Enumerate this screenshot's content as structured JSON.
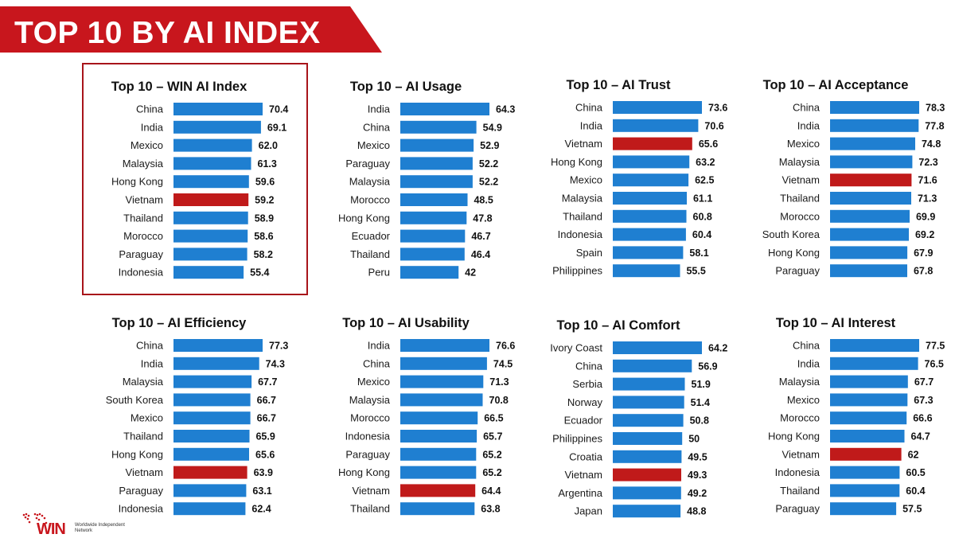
{
  "header": {
    "title": "TOP 10 BY AI INDEX"
  },
  "colors": {
    "bar": "#1f7fd1",
    "highlight": "#c01a1a",
    "banner": "#c8161d"
  },
  "logo": {
    "text": "WIN",
    "sub": "Worldwide Independent Network"
  },
  "chart_data": [
    {
      "type": "bar",
      "orientation": "horizontal",
      "title": "Top 10 – WIN AI Index",
      "categories": [
        "China",
        "India",
        "Mexico",
        "Malaysia",
        "Hong Kong",
        "Vietnam",
        "Thailand",
        "Morocco",
        "Paraguay",
        "Indonesia"
      ],
      "values": [
        70.4,
        69.1,
        62.0,
        61.3,
        59.6,
        59.2,
        58.9,
        58.6,
        58.2,
        55.4
      ],
      "value_labels": [
        "70.4",
        "69.1",
        "62.0",
        "61.3",
        "59.6",
        "59.2",
        "58.9",
        "58.6",
        "58.2",
        "55.4"
      ],
      "highlight": "Vietnam"
    },
    {
      "type": "bar",
      "orientation": "horizontal",
      "title": "Top 10 – AI Usage",
      "categories": [
        "India",
        "China",
        "Mexico",
        "Paraguay",
        "Malaysia",
        "Morocco",
        "Hong Kong",
        "Ecuador",
        "Thailand",
        "Peru"
      ],
      "values": [
        64.3,
        54.9,
        52.9,
        52.2,
        52.2,
        48.5,
        47.8,
        46.7,
        46.4,
        42
      ],
      "value_labels": [
        "64.3",
        "54.9",
        "52.9",
        "52.2",
        "52.2",
        "48.5",
        "47.8",
        "46.7",
        "46.4",
        "42"
      ],
      "highlight": null
    },
    {
      "type": "bar",
      "orientation": "horizontal",
      "title": "Top 10 – AI Trust",
      "categories": [
        "China",
        "India",
        "Vietnam",
        "Hong Kong",
        "Mexico",
        "Malaysia",
        "Thailand",
        "Indonesia",
        "Spain",
        "Philippines"
      ],
      "values": [
        73.6,
        70.6,
        65.6,
        63.2,
        62.5,
        61.1,
        60.8,
        60.4,
        58.1,
        55.5
      ],
      "value_labels": [
        "73.6",
        "70.6",
        "65.6",
        "63.2",
        "62.5",
        "61.1",
        "60.8",
        "60.4",
        "58.1",
        "55.5"
      ],
      "highlight": "Vietnam"
    },
    {
      "type": "bar",
      "orientation": "horizontal",
      "title": "Top 10 – AI Acceptance",
      "categories": [
        "China",
        "India",
        "Mexico",
        "Malaysia",
        "Vietnam",
        "Thailand",
        "Morocco",
        "South Korea",
        "Hong Kong",
        "Paraguay"
      ],
      "values": [
        78.3,
        77.8,
        74.8,
        72.3,
        71.6,
        71.3,
        69.9,
        69.2,
        67.9,
        67.8
      ],
      "value_labels": [
        "78.3",
        "77.8",
        "74.8",
        "72.3",
        "71.6",
        "71.3",
        "69.9",
        "69.2",
        "67.9",
        "67.8"
      ],
      "highlight": "Vietnam"
    },
    {
      "type": "bar",
      "orientation": "horizontal",
      "title": "Top 10 – AI Efficiency",
      "categories": [
        "China",
        "India",
        "Malaysia",
        "South Korea",
        "Mexico",
        "Thailand",
        "Hong Kong",
        "Vietnam",
        "Paraguay",
        "Indonesia"
      ],
      "values": [
        77.3,
        74.3,
        67.7,
        66.7,
        66.7,
        65.9,
        65.6,
        63.9,
        63.1,
        62.4
      ],
      "value_labels": [
        "77.3",
        "74.3",
        "67.7",
        "66.7",
        "66.7",
        "65.9",
        "65.6",
        "63.9",
        "63.1",
        "62.4"
      ],
      "highlight": "Vietnam"
    },
    {
      "type": "bar",
      "orientation": "horizontal",
      "title": "Top 10 – AI Usability",
      "categories": [
        "India",
        "China",
        "Mexico",
        "Malaysia",
        "Morocco",
        "Indonesia",
        "Paraguay",
        "Hong Kong",
        "Vietnam",
        "Thailand"
      ],
      "values": [
        76.6,
        74.5,
        71.3,
        70.8,
        66.5,
        65.7,
        65.2,
        65.2,
        64.4,
        63.8
      ],
      "value_labels": [
        "76.6",
        "74.5",
        "71.3",
        "70.8",
        "66.5",
        "65.7",
        "65.2",
        "65.2",
        "64.4",
        "63.8"
      ],
      "highlight": "Vietnam"
    },
    {
      "type": "bar",
      "orientation": "horizontal",
      "title": "Top 10 – AI Comfort",
      "categories": [
        "Ivory Coast",
        "China",
        "Serbia",
        "Norway",
        "Ecuador",
        "Philippines",
        "Croatia",
        "Vietnam",
        "Argentina",
        "Japan"
      ],
      "values": [
        64.2,
        56.9,
        51.9,
        51.4,
        50.8,
        50,
        49.5,
        49.3,
        49.2,
        48.8
      ],
      "value_labels": [
        "64.2",
        "56.9",
        "51.9",
        "51.4",
        "50.8",
        "50",
        "49.5",
        "49.3",
        "49.2",
        "48.8"
      ],
      "highlight": "Vietnam"
    },
    {
      "type": "bar",
      "orientation": "horizontal",
      "title": "Top 10 – AI Interest",
      "categories": [
        "China",
        "India",
        "Malaysia",
        "Mexico",
        "Morocco",
        "Hong Kong",
        "Vietnam",
        "Indonesia",
        "Thailand",
        "Paraguay"
      ],
      "values": [
        77.5,
        76.5,
        67.7,
        67.3,
        66.6,
        64.7,
        62,
        60.5,
        60.4,
        57.5
      ],
      "value_labels": [
        "77.5",
        "76.5",
        "67.7",
        "67.3",
        "66.6",
        "64.7",
        "62",
        "60.5",
        "60.4",
        "57.5"
      ],
      "highlight": "Vietnam"
    }
  ]
}
